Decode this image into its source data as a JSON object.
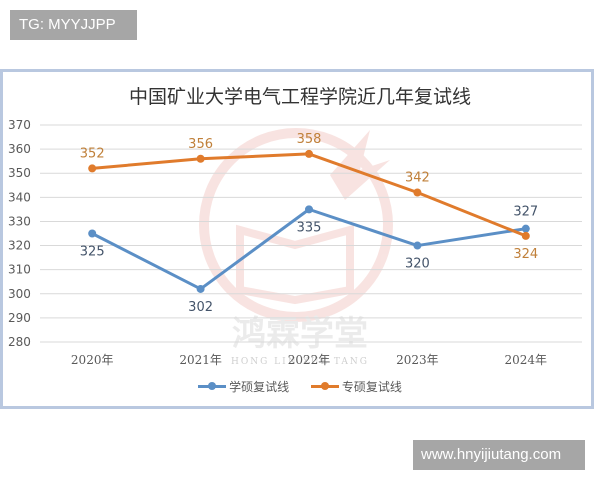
{
  "tags": {
    "top_left": "TG: MYYJJPP",
    "bottom_right": "www.hnyijiutang.com"
  },
  "watermark": {
    "cn": "鸿霖学堂",
    "en": "HONG LIN XUE TANG"
  },
  "chart_data": {
    "type": "line",
    "title": "中国矿业大学电气工程学院近几年复试线",
    "xlabel": "",
    "ylabel": "",
    "categories": [
      "2020年",
      "2021年",
      "2022年",
      "2023年",
      "2024年"
    ],
    "yticks": [
      370,
      360,
      350,
      340,
      330,
      320,
      310,
      300,
      290,
      280
    ],
    "ylim": [
      280,
      370
    ],
    "grid": true,
    "legend_position": "bottom",
    "series": [
      {
        "name": "学硕复试线",
        "color": "#5b8fc6",
        "values": [
          325,
          302,
          335,
          320,
          327
        ]
      },
      {
        "name": "专硕复试线",
        "color": "#e07b2c",
        "values": [
          352,
          356,
          358,
          342,
          324
        ]
      }
    ]
  }
}
